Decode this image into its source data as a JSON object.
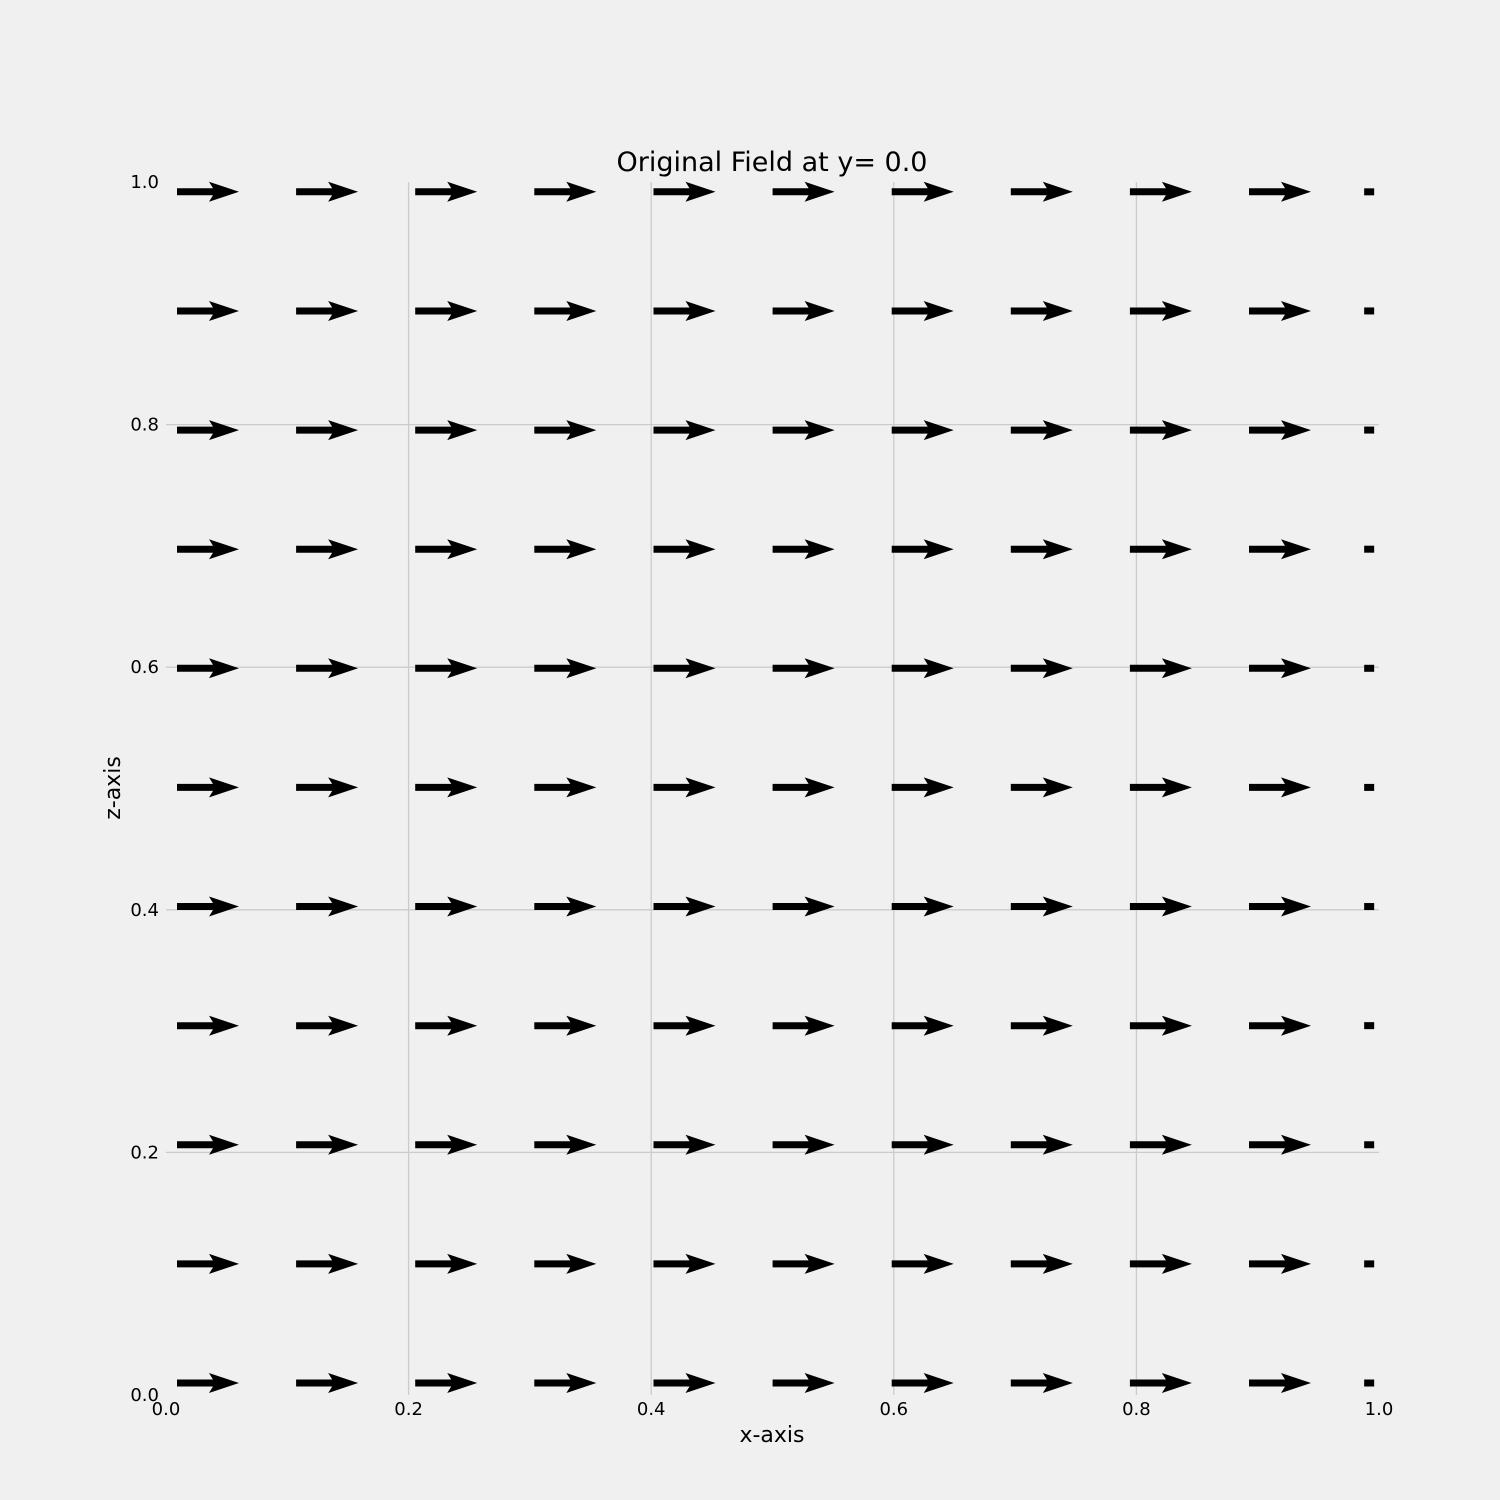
{
  "chart_data": {
    "type": "quiver",
    "title": "Original Field at y= 0.0",
    "xlabel": "x-axis",
    "ylabel": "z-axis",
    "xlim": [
      0.0,
      1.0
    ],
    "ylim": [
      0.0,
      1.0
    ],
    "x_ticks": [
      "0.0",
      "0.2",
      "0.4",
      "0.6",
      "0.8",
      "1.0"
    ],
    "y_ticks": [
      "0.0",
      "0.2",
      "0.4",
      "0.6",
      "0.8",
      "1.0"
    ],
    "grid": true,
    "x": [
      0.0,
      0.1,
      0.2,
      0.3,
      0.4,
      0.5,
      0.6,
      0.7,
      0.8,
      0.9,
      1.0
    ],
    "z": [
      0.0,
      0.1,
      0.2,
      0.3,
      0.4,
      0.5,
      0.6,
      0.7,
      0.8,
      0.9,
      1.0
    ],
    "u": [
      1,
      1,
      1,
      1,
      1,
      1,
      1,
      1,
      1,
      1,
      0
    ],
    "w": [
      0,
      0,
      0,
      0,
      0,
      0,
      0,
      0,
      0,
      0,
      0
    ],
    "arrow_color": "#000000",
    "grid_color": "#cbcbcb",
    "background": "#f0f0f0"
  }
}
